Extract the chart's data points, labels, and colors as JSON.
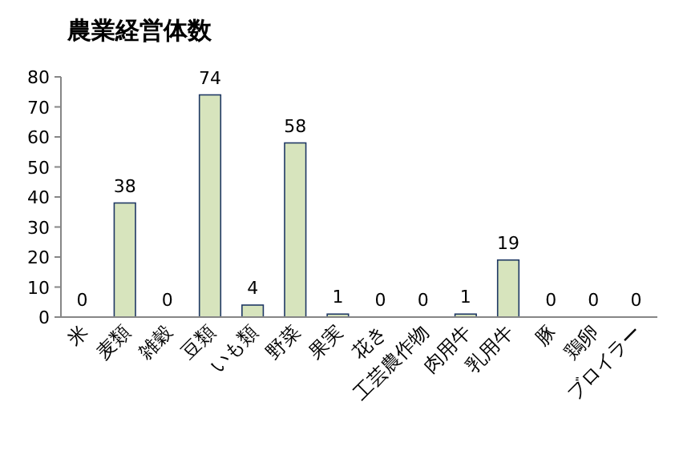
{
  "chart_data": {
    "type": "bar",
    "title": "農業経営体数",
    "categories": [
      "米",
      "麦類",
      "雑穀",
      "豆類",
      "いも類",
      "野菜",
      "果実",
      "花き",
      "工芸農作物",
      "肉用牛",
      "乳用牛",
      "豚",
      "鶏卵",
      "ブロイラー"
    ],
    "values": [
      0,
      38,
      0,
      74,
      4,
      58,
      1,
      0,
      0,
      1,
      19,
      0,
      0,
      0
    ],
    "color": "#d7e4bd",
    "ylim": [
      0,
      80
    ],
    "yticks": [
      0,
      10,
      20,
      30,
      40,
      50,
      60,
      70,
      80
    ],
    "data_labels": true,
    "grid": false
  }
}
